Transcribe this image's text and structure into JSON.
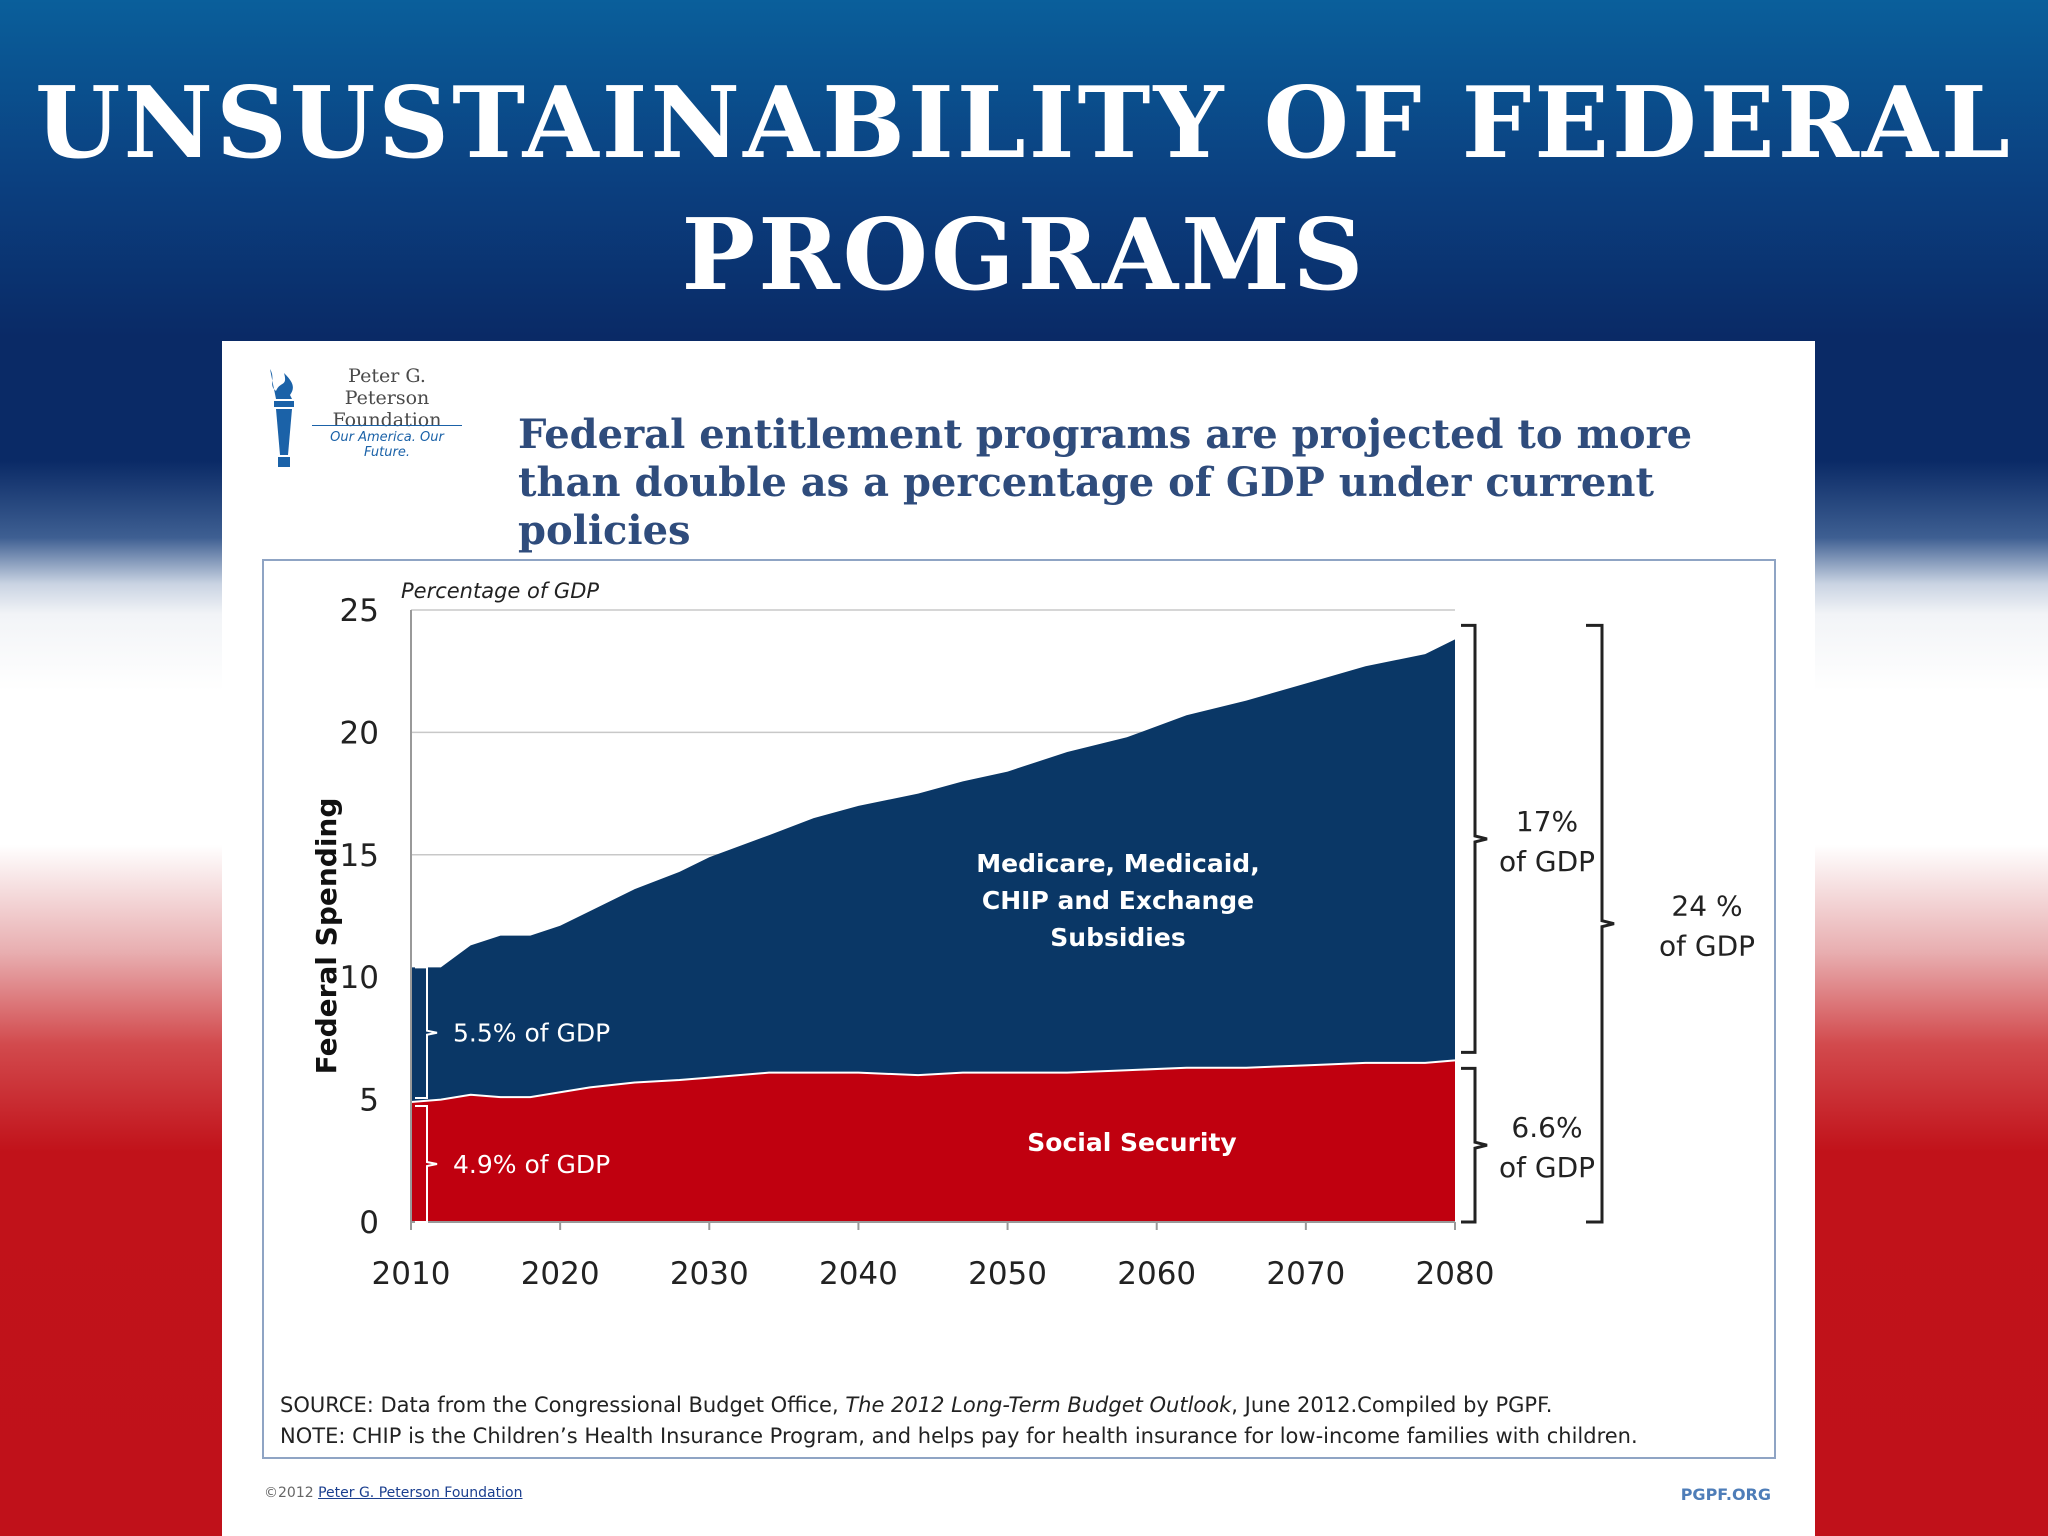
{
  "slide": {
    "title": "Unsustainability of Federal Programs"
  },
  "logo": {
    "line1": "Peter G. Peterson",
    "line2": "Foundation",
    "tagline": "Our America. Our Future."
  },
  "chart_headline": "Federal entitlement programs are projected to more than double as a percentage of GDP under current policies",
  "chart_data": {
    "type": "area",
    "stacked": true,
    "ylabel": "Federal Spending",
    "ylabel_note": "Percentage of GDP",
    "ylim": [
      0,
      25
    ],
    "xlim": [
      2010,
      2080
    ],
    "yticks": [
      0,
      5,
      10,
      15,
      20,
      25
    ],
    "xticks": [
      2010,
      2020,
      2030,
      2040,
      2050,
      2060,
      2070,
      2080
    ],
    "grid": true,
    "x": [
      2010,
      2012,
      2014,
      2016,
      2018,
      2020,
      2022,
      2025,
      2028,
      2030,
      2034,
      2037,
      2040,
      2044,
      2047,
      2050,
      2054,
      2058,
      2062,
      2066,
      2070,
      2074,
      2078,
      2080
    ],
    "series": [
      {
        "name": "Social Security",
        "color": "#c0000f",
        "values": [
          4.9,
          5.0,
          5.2,
          5.1,
          5.1,
          5.3,
          5.5,
          5.7,
          5.8,
          5.9,
          6.1,
          6.1,
          6.1,
          6.0,
          6.1,
          6.1,
          6.1,
          6.2,
          6.3,
          6.3,
          6.4,
          6.5,
          6.5,
          6.6
        ]
      },
      {
        "name": "Medicare, Medicaid, CHIP and Exchange Subsidies",
        "color": "#0a3766",
        "values": [
          5.5,
          5.4,
          6.1,
          6.6,
          6.6,
          6.8,
          7.2,
          7.9,
          8.5,
          9.0,
          9.7,
          10.4,
          10.9,
          11.5,
          11.9,
          12.3,
          13.1,
          13.6,
          14.4,
          15.0,
          15.6,
          16.2,
          16.7,
          17.2
        ]
      }
    ],
    "annotations": {
      "ss_label": "Social Security",
      "health_label": [
        "Medicare, Medicaid,",
        "CHIP and Exchange",
        "Subsidies"
      ],
      "start_health": "5.5% of GDP",
      "start_ss": "4.9% of GDP",
      "end_health": [
        "17%",
        "of GDP"
      ],
      "end_ss": [
        "6.6%",
        "of GDP"
      ],
      "end_total": [
        "24 %",
        "of GDP"
      ]
    }
  },
  "source_line": {
    "prefix": "SOURCE: Data from the Congressional Budget Office, ",
    "italic": "The 2012 Long-Term Budget Outlook",
    "suffix": ", June 2012.Compiled by PGPF."
  },
  "note_line": "NOTE: CHIP is the Children’s Health Insurance Program, and helps pay for health insurance for low-income families with children.",
  "footer": {
    "copyright": "©2012",
    "org_link": "Peter G. Peterson Foundation",
    "site": "PGPF.ORG"
  },
  "colors": {
    "navy": "#0a3766",
    "red": "#c0000f",
    "headline": "#2f4c7c"
  }
}
